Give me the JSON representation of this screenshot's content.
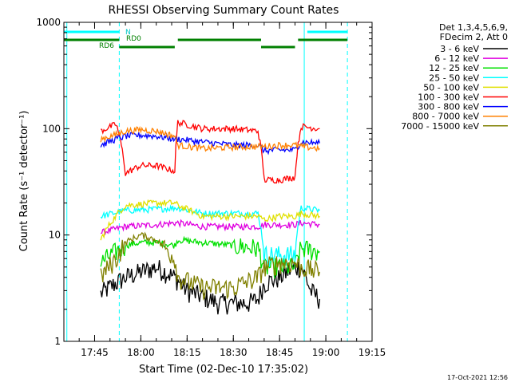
{
  "chart_data": {
    "type": "line",
    "title": "RHESSI Observing Summary Count Rates",
    "xlabel": "Start Time (02-Dec-10 17:35:02)",
    "ylabel": "Count Rate (s⁻¹ detector⁻¹)",
    "y_scale": "log",
    "ylim": [
      1,
      1000
    ],
    "y_ticks": [
      {
        "value": 1,
        "label": "1"
      },
      {
        "value": 10,
        "label": "10"
      },
      {
        "value": 100,
        "label": "100"
      },
      {
        "value": 1000,
        "label": "1000"
      }
    ],
    "xlim": [
      "17:35:02",
      "19:15:00"
    ],
    "x_ticks": [
      "17:45",
      "18:00",
      "18:15",
      "18:30",
      "18:45",
      "19:00",
      "19:15"
    ],
    "legend": {
      "placement": "right-outside",
      "header": [
        "Det 1,3,4,5,6,9,",
        "FDecim 2, Att 0"
      ]
    },
    "series": [
      {
        "name": "3 - 6 keV",
        "color": "#000000",
        "segments": [
          {
            "t": [
              "17:47",
              "17:55",
              "18:05",
              "18:11",
              "18:15",
              "18:25",
              "18:35",
              "18:38",
              "18:40",
              "18:45",
              "18:50",
              "18:52",
              "18:55",
              "18:58"
            ],
            "y": [
              2.8,
              4.0,
              5.0,
              4.0,
              3.0,
              2.3,
              2.3,
              2.5,
              3.5,
              4.0,
              5.0,
              5.0,
              3.0,
              2.5
            ]
          }
        ]
      },
      {
        "name": "6 - 12 keV",
        "color": "#e000e0",
        "segments": [
          {
            "t": [
              "17:47",
              "17:55",
              "18:05",
              "18:11",
              "18:12",
              "18:20",
              "18:30",
              "18:38",
              "18:40",
              "18:45",
              "18:50",
              "18:52",
              "18:58"
            ],
            "y": [
              10.5,
              12.0,
              12.5,
              13.0,
              13.0,
              12.0,
              12.0,
              12.0,
              12.5,
              12.5,
              12.5,
              13.0,
              12.5
            ]
          }
        ]
      },
      {
        "name": "12 - 25 keV",
        "color": "#00e000",
        "segments": [
          {
            "t": [
              "17:47",
              "17:52",
              "17:55",
              "18:00",
              "18:05",
              "18:11",
              "18:12",
              "18:20",
              "18:30",
              "18:38",
              "18:40",
              "18:45",
              "18:50",
              "18:52",
              "18:58"
            ],
            "y": [
              5.5,
              7.0,
              8.0,
              8.5,
              8.5,
              8.0,
              9.0,
              8.5,
              8.0,
              7.5,
              5.0,
              5.0,
              5.0,
              7.5,
              7.0
            ]
          }
        ]
      },
      {
        "name": "25 - 50 keV",
        "color": "#00ffff",
        "segments": [
          {
            "t": [
              "17:47",
              "17:55",
              "18:05",
              "18:11",
              "18:12",
              "18:20",
              "18:30",
              "18:38",
              "18:40",
              "18:45",
              "18:50",
              "18:52",
              "18:58"
            ],
            "y": [
              15.0,
              17.0,
              17.5,
              18.0,
              18.0,
              16.0,
              16.0,
              16.0,
              6.5,
              6.5,
              6.5,
              18.0,
              17.0
            ]
          }
        ]
      },
      {
        "name": "50 - 100 keV",
        "color": "#e0e000",
        "segments": [
          {
            "t": [
              "17:47",
              "17:55",
              "18:05",
              "18:11",
              "18:12",
              "18:20",
              "18:30",
              "18:38",
              "18:40",
              "18:45",
              "18:50",
              "18:52",
              "18:58"
            ],
            "y": [
              9.0,
              19.0,
              20.0,
              20.0,
              19.0,
              15.0,
              15.0,
              15.0,
              14.0,
              15.0,
              15.0,
              16.0,
              15.0
            ]
          }
        ]
      },
      {
        "name": "100 - 300 keV",
        "color": "#ff0000",
        "segments": [
          {
            "t": [
              "17:47",
              "17:52",
              "17:55",
              "18:00",
              "18:05",
              "18:11",
              "18:12",
              "18:20",
              "18:30",
              "18:38",
              "18:40",
              "18:45",
              "18:50",
              "18:52",
              "18:58"
            ],
            "y": [
              95,
              110,
              38,
              45,
              45,
              40,
              115,
              100,
              100,
              95,
              33,
              33,
              35,
              105,
              100
            ]
          }
        ]
      },
      {
        "name": "300 - 800 keV",
        "color": "#0000ff",
        "segments": [
          {
            "t": [
              "17:47",
              "17:52",
              "17:55",
              "18:00",
              "18:05",
              "18:11",
              "18:12",
              "18:20",
              "18:30",
              "18:38",
              "18:40",
              "18:45",
              "18:50",
              "18:52",
              "18:58"
            ],
            "y": [
              70,
              80,
              85,
              87,
              85,
              80,
              80,
              75,
              70,
              70,
              62,
              63,
              63,
              75,
              73
            ]
          }
        ]
      },
      {
        "name": "800 - 7000 keV",
        "color": "#ff8000",
        "segments": [
          {
            "t": [
              "17:47",
              "17:52",
              "17:55",
              "18:00",
              "18:05",
              "18:11",
              "18:12",
              "18:20",
              "18:30",
              "18:38",
              "18:40",
              "18:45",
              "18:50",
              "18:52",
              "18:58"
            ],
            "y": [
              80,
              88,
              95,
              98,
              95,
              85,
              70,
              65,
              67,
              68,
              68,
              70,
              70,
              68,
              65
            ]
          }
        ]
      },
      {
        "name": "7000 - 15000 keV",
        "color": "#808000",
        "segments": [
          {
            "t": [
              "17:47",
              "17:52",
              "17:55",
              "18:00",
              "18:05",
              "18:11",
              "18:12",
              "18:20",
              "18:30",
              "18:38",
              "18:40",
              "18:45",
              "18:50",
              "18:52",
              "18:58"
            ],
            "y": [
              4.0,
              6.0,
              8.5,
              10.0,
              9.0,
              6.0,
              4.0,
              3.2,
              3.2,
              4.0,
              5.0,
              5.5,
              5.5,
              5.0,
              4.5
            ]
          }
        ]
      }
    ],
    "cyan_vlines_solid": [
      "17:36",
      "18:53"
    ],
    "cyan_vlines_dashed": [
      "17:53",
      "19:07"
    ],
    "flag_bars": [
      {
        "label": "",
        "color": "#00ffff",
        "segments": [
          [
            "17:35",
            "17:53"
          ],
          [
            "18:54",
            "19:07"
          ]
        ]
      },
      {
        "label": "N",
        "color": "#00ffff",
        "segments": []
      },
      {
        "label": "RD0",
        "color": "#008000",
        "segments": [
          [
            "17:35",
            "17:53"
          ],
          [
            "18:12",
            "18:39"
          ],
          [
            "18:51",
            "19:07"
          ]
        ]
      },
      {
        "label": "RD6",
        "color": "#008000",
        "segments": [
          [
            "17:53",
            "18:11"
          ],
          [
            "18:39",
            "18:50"
          ]
        ]
      }
    ],
    "footer_timestamp": "17-Oct-2021 12:56"
  }
}
